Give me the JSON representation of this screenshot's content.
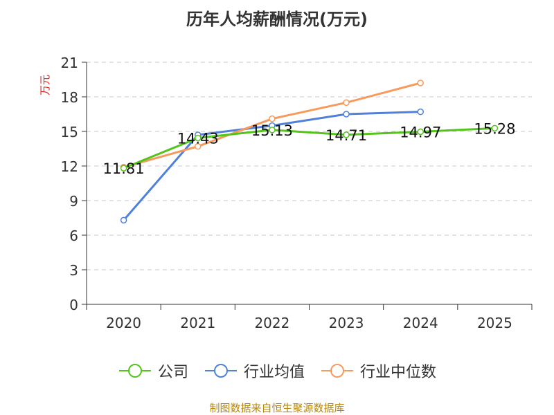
{
  "title": "历年人均薪酬情况(万元)",
  "source": "制图数据来自恒生聚源数据库",
  "chart_data": {
    "type": "line",
    "categories": [
      "2020",
      "2021",
      "2022",
      "2023",
      "2024",
      "2025"
    ],
    "ylabel": "万元",
    "ylim": [
      0,
      21
    ],
    "yticks": [
      0,
      3,
      6,
      9,
      12,
      15,
      18,
      21
    ],
    "grid": true,
    "legend_position": "bottom",
    "series": [
      {
        "name": "公司",
        "color": "#52c41a",
        "values": [
          11.81,
          14.43,
          15.13,
          14.71,
          14.97,
          15.28
        ],
        "value_labels": [
          "11.81",
          "14.43",
          "15.13",
          "14.71",
          "14.97",
          "15.28"
        ]
      },
      {
        "name": "行业均值",
        "color": "#4f81d9",
        "values": [
          7.3,
          14.7,
          15.5,
          16.5,
          16.7,
          null
        ]
      },
      {
        "name": "行业中位数",
        "color": "#f79a5c",
        "values": [
          11.9,
          13.7,
          16.1,
          17.5,
          19.2,
          null
        ]
      }
    ]
  }
}
